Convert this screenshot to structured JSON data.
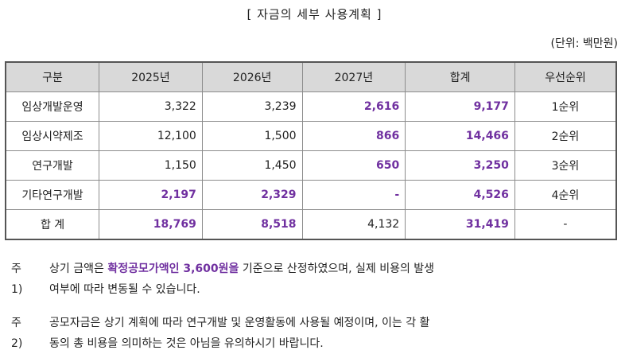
{
  "title": "[ 자금의 세부 사용계획 ]",
  "unit": "(단위: 백만원)",
  "table": {
    "headers": [
      "구분",
      "2025년",
      "2026년",
      "2027년",
      "합계",
      "우선순위"
    ],
    "rows": [
      {
        "cat": "임상개발운영",
        "y2025": "3,322",
        "y2026": "3,239",
        "y2027": "2,616",
        "total": "9,177",
        "rank": "1순위"
      },
      {
        "cat": "임상시약제조",
        "y2025": "12,100",
        "y2026": "1,500",
        "y2027": "866",
        "total": "14,466",
        "rank": "2순위"
      },
      {
        "cat": "연구개발",
        "y2025": "1,150",
        "y2026": "1,450",
        "y2027": "650",
        "total": "3,250",
        "rank": "3순위"
      },
      {
        "cat": "기타연구개발",
        "y2025": "2,197",
        "y2026": "2,329",
        "y2027": "-",
        "total": "4,526",
        "rank": "4순위"
      },
      {
        "cat": "합 계",
        "y2025": "18,769",
        "y2026": "8,518",
        "y2027": "4,132",
        "total": "31,419",
        "rank": "-"
      }
    ]
  },
  "notes": [
    {
      "label": "주1)",
      "pre": "상기 금액은 ",
      "emphasis": "확정공모가액인 3,600원을",
      "post": " 기준으로 산정하였으며, 실제 비용의 발생",
      "line2": "여부에 따라 변동될 수 있습니다."
    },
    {
      "label": "주2)",
      "line1": "공모자금은 상기 계획에 따라 연구개발 및 운영활동에 사용될 예정이며, 이는 각 활",
      "line2": "동의 총 비용을 의미하는 것은 아님을 유의하시기 바랍니다."
    }
  ],
  "colors": {
    "highlight": "#7030a0",
    "header_bg": "#d9d9d9"
  }
}
